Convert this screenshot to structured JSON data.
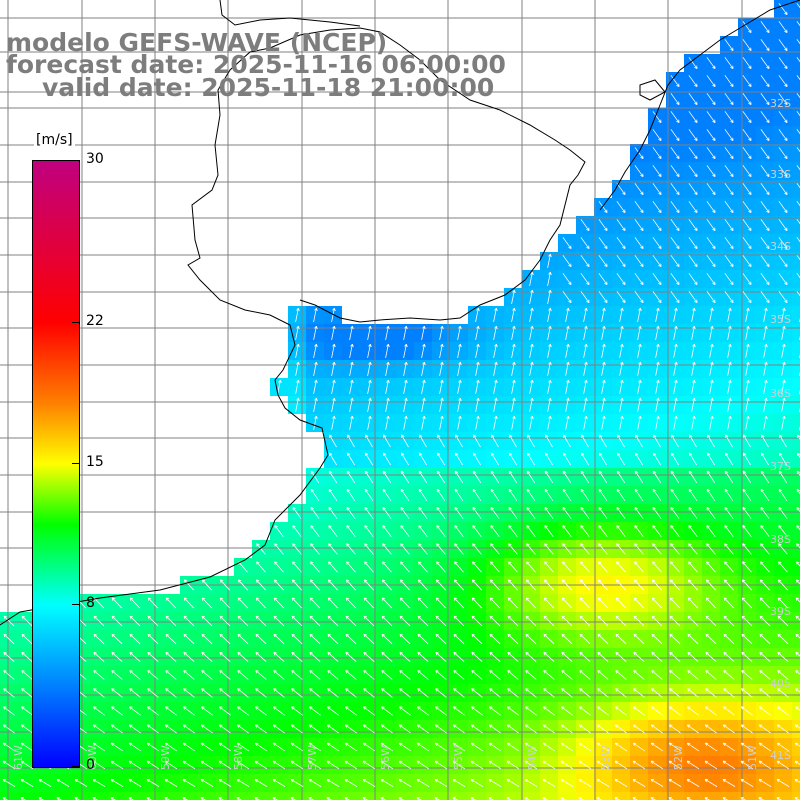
{
  "title": {
    "line1": "modelo GEFS-WAVE (NCEP)",
    "line2": "forecast date: 2025-11-16 06:00:00",
    "line3": "valid date: 2025-11-18 21:00:00"
  },
  "colorbar": {
    "unit": "[m/s]",
    "min": 0,
    "max": 30,
    "ticks": [
      {
        "value": 30,
        "label": "30"
      },
      {
        "value": 22,
        "label": "22"
      },
      {
        "value": 15,
        "label": "15"
      },
      {
        "value": 8,
        "label": "8"
      },
      {
        "value": 0,
        "label": "0"
      }
    ],
    "stops": [
      {
        "value": 0,
        "color": "#0000ff"
      },
      {
        "value": 8,
        "color": "#00ffff"
      },
      {
        "value": 12,
        "color": "#00ff00"
      },
      {
        "value": 15,
        "color": "#ffff00"
      },
      {
        "value": 18,
        "color": "#ff8000"
      },
      {
        "value": 22,
        "color": "#ff0000"
      },
      {
        "value": 30,
        "color": "#c00080"
      }
    ]
  },
  "latitude_labels": [
    "32S",
    "33S",
    "34S",
    "35S",
    "36S",
    "37S",
    "38S",
    "39S",
    "40S",
    "41S"
  ],
  "longitude_labels": [
    "61W",
    "60W",
    "59W",
    "58W",
    "57W",
    "56W",
    "55W",
    "54W",
    "53W",
    "52W",
    "51W"
  ],
  "colors": {
    "land": "#ffffff",
    "grid": "#808080",
    "coast": "#000000",
    "arrows": "#ffffff",
    "title": "#7d7d7d"
  }
}
